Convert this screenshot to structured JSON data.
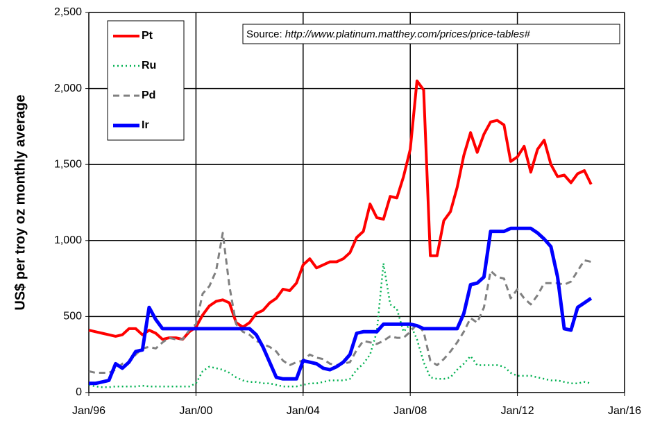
{
  "chart_data": {
    "type": "line",
    "y_label": "US$ per troy oz monthly average",
    "source_label": "Source:",
    "source_url": "http://www.platinum.matthey.com/prices/price-tables#",
    "x": [
      1996,
      1996.25,
      1996.5,
      1996.75,
      1997,
      1997.25,
      1997.5,
      1997.75,
      1998,
      1998.25,
      1998.5,
      1998.75,
      1999,
      1999.25,
      1999.5,
      1999.75,
      2000,
      2000.25,
      2000.5,
      2000.75,
      2001,
      2001.25,
      2001.5,
      2001.75,
      2002,
      2002.25,
      2002.5,
      2002.75,
      2003,
      2003.25,
      2003.5,
      2003.75,
      2004,
      2004.25,
      2004.5,
      2004.75,
      2005,
      2005.25,
      2005.5,
      2005.75,
      2006,
      2006.25,
      2006.5,
      2006.75,
      2007,
      2007.25,
      2007.5,
      2007.75,
      2008,
      2008.25,
      2008.5,
      2008.75,
      2009,
      2009.25,
      2009.5,
      2009.75,
      2010,
      2010.25,
      2010.5,
      2010.75,
      2011,
      2011.25,
      2011.5,
      2011.75,
      2012,
      2012.25,
      2012.5,
      2012.75,
      2013,
      2013.25,
      2013.5,
      2013.75,
      2014,
      2014.25,
      2014.5,
      2014.75
    ],
    "series": [
      {
        "name": "Pt",
        "color": "#ff0000",
        "style": "solid",
        "width": 4,
        "values": [
          410,
          400,
          390,
          380,
          370,
          380,
          420,
          420,
          380,
          410,
          390,
          350,
          360,
          360,
          350,
          400,
          430,
          510,
          570,
          600,
          610,
          590,
          460,
          430,
          460,
          520,
          540,
          590,
          620,
          680,
          670,
          720,
          840,
          880,
          820,
          840,
          860,
          860,
          880,
          920,
          1020,
          1060,
          1240,
          1150,
          1140,
          1290,
          1280,
          1420,
          1600,
          2050,
          1990,
          900,
          900,
          1130,
          1190,
          1350,
          1560,
          1710,
          1580,
          1700,
          1780,
          1790,
          1760,
          1520,
          1550,
          1620,
          1450,
          1600,
          1660,
          1500,
          1420,
          1430,
          1380,
          1440,
          1460,
          1370
        ]
      },
      {
        "name": "Ru",
        "color": "#00b050",
        "style": "dotted",
        "width": 2.5,
        "values": [
          50,
          40,
          35,
          35,
          40,
          40,
          40,
          40,
          45,
          40,
          40,
          40,
          40,
          40,
          40,
          40,
          60,
          140,
          170,
          160,
          150,
          130,
          100,
          80,
          70,
          70,
          60,
          60,
          50,
          40,
          40,
          40,
          50,
          60,
          60,
          70,
          80,
          80,
          80,
          90,
          150,
          190,
          250,
          400,
          850,
          580,
          550,
          400,
          450,
          350,
          200,
          100,
          90,
          90,
          100,
          150,
          190,
          240,
          180,
          180,
          180,
          180,
          170,
          130,
          110,
          110,
          110,
          100,
          90,
          80,
          80,
          70,
          60,
          60,
          70,
          60
        ]
      },
      {
        "name": "Pd",
        "color": "#808080",
        "style": "dashed",
        "width": 3,
        "values": [
          140,
          130,
          130,
          130,
          150,
          190,
          200,
          250,
          290,
          300,
          290,
          330,
          360,
          350,
          350,
          410,
          450,
          650,
          700,
          800,
          1050,
          700,
          450,
          400,
          380,
          340,
          320,
          300,
          270,
          210,
          180,
          200,
          210,
          250,
          230,
          220,
          190,
          180,
          190,
          200,
          280,
          340,
          330,
          320,
          340,
          370,
          360,
          360,
          400,
          450,
          400,
          210,
          180,
          220,
          270,
          330,
          400,
          490,
          460,
          560,
          800,
          760,
          750,
          620,
          680,
          620,
          580,
          640,
          720,
          720,
          720,
          710,
          730,
          800,
          870,
          860
        ]
      },
      {
        "name": "Ir",
        "color": "#0000ff",
        "style": "solid",
        "width": 5,
        "values": [
          60,
          60,
          70,
          80,
          190,
          160,
          200,
          270,
          280,
          560,
          480,
          420,
          420,
          420,
          420,
          420,
          420,
          420,
          420,
          420,
          420,
          420,
          420,
          420,
          420,
          380,
          300,
          200,
          100,
          90,
          90,
          90,
          210,
          200,
          190,
          160,
          150,
          170,
          200,
          250,
          390,
          400,
          400,
          400,
          450,
          450,
          450,
          450,
          450,
          440,
          420,
          420,
          420,
          420,
          420,
          420,
          520,
          710,
          720,
          760,
          1060,
          1060,
          1060,
          1080,
          1080,
          1080,
          1080,
          1050,
          1010,
          960,
          760,
          420,
          410,
          560,
          590,
          620
        ]
      }
    ],
    "xlim": [
      1996,
      2016
    ],
    "xticks": [
      {
        "value": 1996,
        "label": "Jan/96"
      },
      {
        "value": 2000,
        "label": "Jan/00"
      },
      {
        "value": 2004,
        "label": "Jan/04"
      },
      {
        "value": 2008,
        "label": "Jan/08"
      },
      {
        "value": 2012,
        "label": "Jan/12"
      },
      {
        "value": 2016,
        "label": "Jan/16"
      }
    ],
    "ylim": [
      0,
      2500
    ],
    "yticks": [
      0,
      {
        "value": 500,
        "label": "500"
      },
      {
        "value": 1000,
        "label": "1,000"
      },
      {
        "value": 1500,
        "label": "1,500"
      },
      {
        "value": 2000,
        "label": "2,000"
      },
      {
        "value": 2500,
        "label": "2,500"
      }
    ],
    "grid": true
  }
}
